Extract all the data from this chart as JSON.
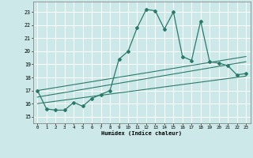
{
  "title": "",
  "xlabel": "Humidex (Indice chaleur)",
  "bg_color": "#cce8e8",
  "grid_color": "#ffffff",
  "line_color": "#2a7a6a",
  "xlim": [
    -0.5,
    23.5
  ],
  "ylim": [
    14.5,
    23.8
  ],
  "yticks": [
    15,
    16,
    17,
    18,
    19,
    20,
    21,
    22,
    23
  ],
  "xticks": [
    0,
    1,
    2,
    3,
    4,
    5,
    6,
    7,
    8,
    9,
    10,
    11,
    12,
    13,
    14,
    15,
    16,
    17,
    18,
    19,
    20,
    21,
    22,
    23
  ],
  "line1_x": [
    0,
    1,
    2,
    3,
    4,
    5,
    6,
    7,
    8,
    9,
    10,
    11,
    12,
    13,
    14,
    15,
    16,
    17,
    18,
    19,
    20,
    21,
    22,
    23
  ],
  "line1_y": [
    17.0,
    15.6,
    15.5,
    15.5,
    16.1,
    15.8,
    16.4,
    16.7,
    17.0,
    19.4,
    20.0,
    21.8,
    23.2,
    23.1,
    21.7,
    23.0,
    19.6,
    19.3,
    22.3,
    19.2,
    19.1,
    18.9,
    18.2,
    18.3
  ],
  "line2_x": [
    0,
    23
  ],
  "line2_y": [
    16.0,
    18.1
  ],
  "line3_x": [
    0,
    23
  ],
  "line3_y": [
    16.5,
    19.2
  ],
  "line4_x": [
    0,
    23
  ],
  "line4_y": [
    17.0,
    19.6
  ]
}
